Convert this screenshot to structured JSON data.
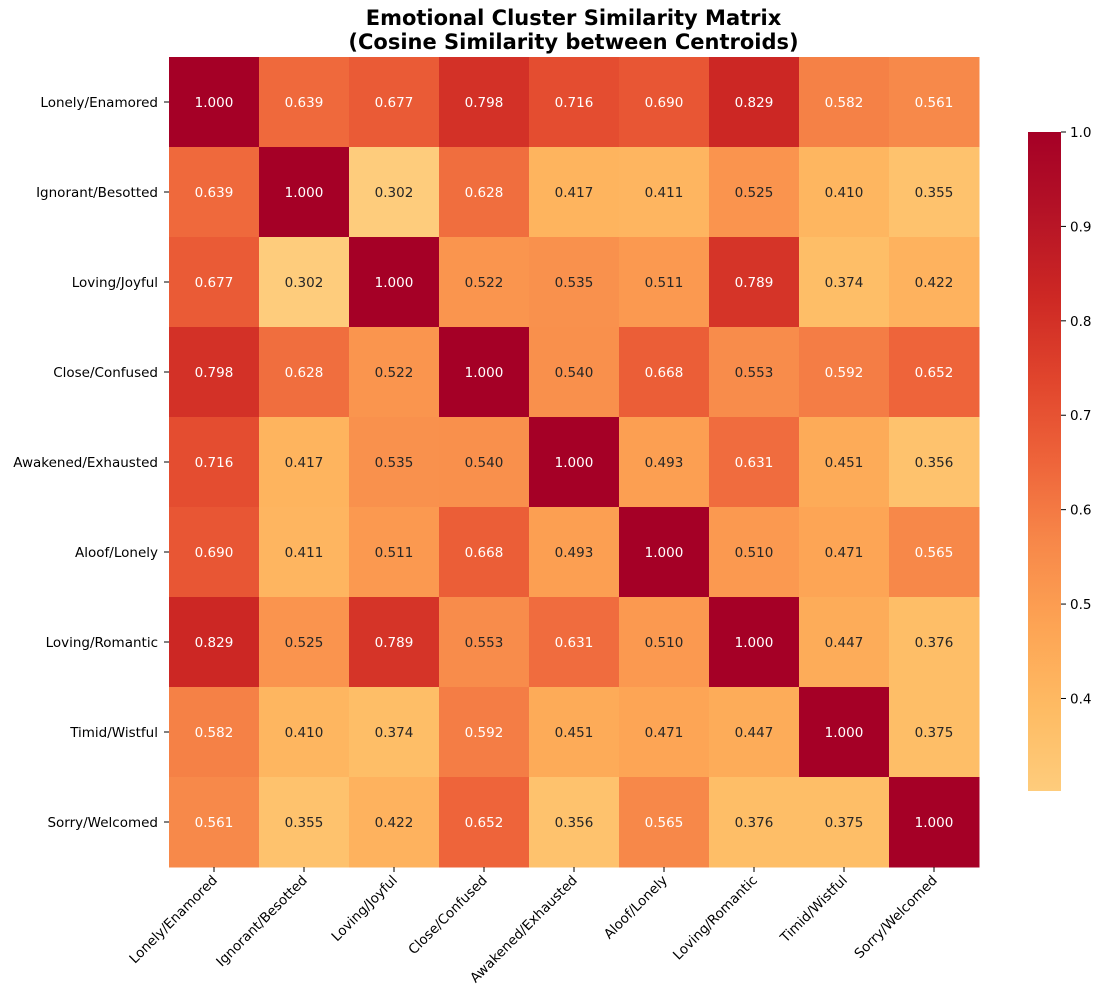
{
  "chart_data": {
    "type": "heatmap",
    "title": "Emotional Cluster Similarity Matrix",
    "subtitle": "(Cosine Similarity between Centroids)",
    "row_labels": [
      "Lonely/Enamored",
      "Ignorant/Besotted",
      "Loving/Joyful",
      "Close/Confused",
      "Awakened/Exhausted",
      "Aloof/Lonely",
      "Loving/Romantic",
      "Timid/Wistful",
      "Sorry/Welcomed"
    ],
    "col_labels": [
      "Lonely/Enamored",
      "Ignorant/Besotted",
      "Loving/Joyful",
      "Close/Confused",
      "Awakened/Exhausted",
      "Aloof/Lonely",
      "Loving/Romantic",
      "Timid/Wistful",
      "Sorry/Welcomed"
    ],
    "values": [
      [
        1.0,
        0.639,
        0.677,
        0.798,
        0.716,
        0.69,
        0.829,
        0.582,
        0.561
      ],
      [
        0.639,
        1.0,
        0.302,
        0.628,
        0.417,
        0.411,
        0.525,
        0.41,
        0.355
      ],
      [
        0.677,
        0.302,
        1.0,
        0.522,
        0.535,
        0.511,
        0.789,
        0.374,
        0.422
      ],
      [
        0.798,
        0.628,
        0.522,
        1.0,
        0.54,
        0.668,
        0.553,
        0.592,
        0.652
      ],
      [
        0.716,
        0.417,
        0.535,
        0.54,
        1.0,
        0.493,
        0.631,
        0.451,
        0.356
      ],
      [
        0.69,
        0.411,
        0.511,
        0.668,
        0.493,
        1.0,
        0.51,
        0.471,
        0.565
      ],
      [
        0.829,
        0.525,
        0.789,
        0.553,
        0.631,
        0.51,
        1.0,
        0.447,
        0.376
      ],
      [
        0.582,
        0.41,
        0.374,
        0.592,
        0.451,
        0.471,
        0.447,
        1.0,
        0.375
      ],
      [
        0.561,
        0.355,
        0.422,
        0.652,
        0.356,
        0.565,
        0.376,
        0.375,
        1.0
      ]
    ],
    "value_format": "3 decimals",
    "colormap": "YlOrRd",
    "vmin": 0.302,
    "vmax": 1.0,
    "colorbar": {
      "ticks": [
        "0.4",
        "0.5",
        "0.6",
        "0.7",
        "0.8",
        "0.9",
        "1.0"
      ],
      "position": "right"
    },
    "grid": false
  }
}
